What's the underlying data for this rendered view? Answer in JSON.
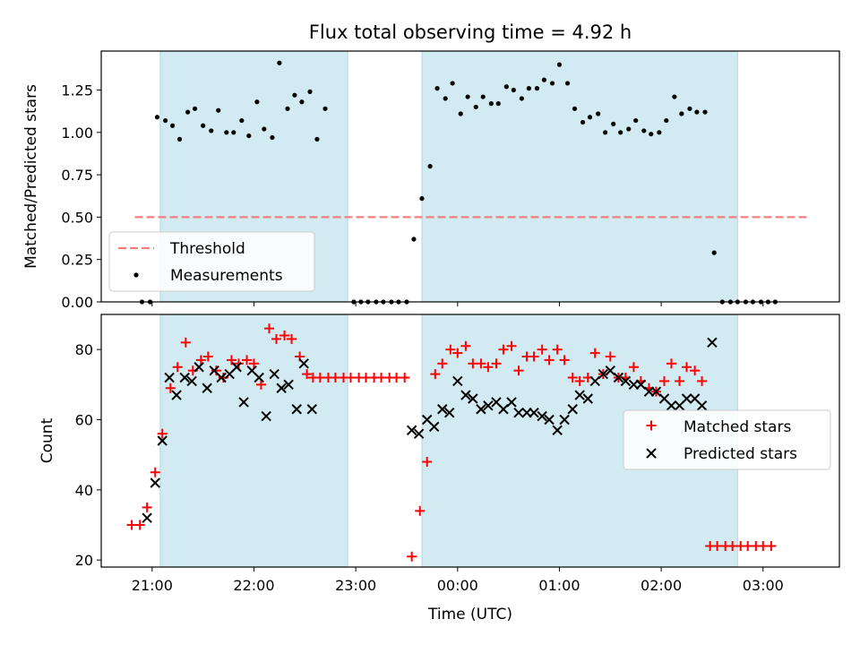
{
  "chart_data": {
    "title": "Flux total observing time = 4.92 h",
    "xlabel": "Time (UTC)",
    "x_unit": "hours relative to 00:00 UTC",
    "xlim": [
      -3.5,
      3.75
    ],
    "xticks": [
      {
        "value": -3,
        "label": "21:00"
      },
      {
        "value": -2,
        "label": "22:00"
      },
      {
        "value": -1,
        "label": "23:00"
      },
      {
        "value": 0,
        "label": "00:00"
      },
      {
        "value": 1,
        "label": "01:00"
      },
      {
        "value": 2,
        "label": "02:00"
      },
      {
        "value": 3,
        "label": "03:00"
      }
    ],
    "shaded_spans": [
      [
        -2.92,
        -1.08
      ],
      [
        -0.35,
        2.75
      ]
    ],
    "shaded_color": "#add8e6",
    "top": {
      "type": "scatter",
      "ylabel": "Matched/Predicted stars",
      "ylim": [
        0,
        1.48
      ],
      "yticks": [
        {
          "value": 0,
          "label": "0.00"
        },
        {
          "value": 0.25,
          "label": "0.25"
        },
        {
          "value": 0.5,
          "label": "0.50"
        },
        {
          "value": 0.75,
          "label": "0.75"
        },
        {
          "value": 1.0,
          "label": "1.00"
        },
        {
          "value": 1.25,
          "label": "1.25"
        }
      ],
      "threshold": {
        "name": "Threshold",
        "value": 0.5,
        "x_range": [
          -3.17,
          3.45
        ],
        "color": "#f08080"
      },
      "legend": {
        "position": "lower-left",
        "entries": [
          "Threshold",
          "Measurements"
        ]
      },
      "series": [
        {
          "name": "Measurements",
          "color": "#000000",
          "points": [
            [
              -3.1,
              0
            ],
            [
              -3.02,
              0
            ],
            [
              -2.95,
              1.09
            ],
            [
              -2.87,
              1.07
            ],
            [
              -2.8,
              1.04
            ],
            [
              -2.73,
              0.96
            ],
            [
              -2.65,
              1.12
            ],
            [
              -2.58,
              1.14
            ],
            [
              -2.5,
              1.04
            ],
            [
              -2.42,
              1.01
            ],
            [
              -2.35,
              1.13
            ],
            [
              -2.27,
              1.0
            ],
            [
              -2.2,
              1.0
            ],
            [
              -2.12,
              1.07
            ],
            [
              -2.05,
              0.98
            ],
            [
              -1.97,
              1.18
            ],
            [
              -1.9,
              1.02
            ],
            [
              -1.82,
              0.97
            ],
            [
              -1.75,
              1.41
            ],
            [
              -1.67,
              1.14
            ],
            [
              -1.6,
              1.22
            ],
            [
              -1.53,
              1.18
            ],
            [
              -1.45,
              1.24
            ],
            [
              -1.38,
              0.96
            ],
            [
              -1.3,
              1.14
            ],
            [
              -1.02,
              0
            ],
            [
              -0.95,
              0
            ],
            [
              -0.88,
              0
            ],
            [
              -0.8,
              0
            ],
            [
              -0.73,
              0
            ],
            [
              -0.65,
              0
            ],
            [
              -0.58,
              0
            ],
            [
              -0.5,
              0
            ],
            [
              -0.43,
              0.37
            ],
            [
              -0.35,
              0.61
            ],
            [
              -0.27,
              0.8
            ],
            [
              -0.2,
              1.26
            ],
            [
              -0.12,
              1.2
            ],
            [
              -0.05,
              1.29
            ],
            [
              0.03,
              1.11
            ],
            [
              0.1,
              1.21
            ],
            [
              0.18,
              1.15
            ],
            [
              0.25,
              1.21
            ],
            [
              0.33,
              1.17
            ],
            [
              0.4,
              1.17
            ],
            [
              0.48,
              1.27
            ],
            [
              0.55,
              1.25
            ],
            [
              0.63,
              1.2
            ],
            [
              0.7,
              1.26
            ],
            [
              0.78,
              1.26
            ],
            [
              0.85,
              1.31
            ],
            [
              0.93,
              1.29
            ],
            [
              1.0,
              1.4
            ],
            [
              1.08,
              1.29
            ],
            [
              1.15,
              1.14
            ],
            [
              1.23,
              1.06
            ],
            [
              1.3,
              1.09
            ],
            [
              1.38,
              1.11
            ],
            [
              1.45,
              1.0
            ],
            [
              1.53,
              1.05
            ],
            [
              1.6,
              1.0
            ],
            [
              1.68,
              1.02
            ],
            [
              1.75,
              1.07
            ],
            [
              1.83,
              1.01
            ],
            [
              1.9,
              0.99
            ],
            [
              1.98,
              1.0
            ],
            [
              2.05,
              1.07
            ],
            [
              2.13,
              1.21
            ],
            [
              2.2,
              1.11
            ],
            [
              2.28,
              1.14
            ],
            [
              2.35,
              1.12
            ],
            [
              2.43,
              1.12
            ],
            [
              2.52,
              0.29
            ],
            [
              2.6,
              0
            ],
            [
              2.68,
              0
            ],
            [
              2.75,
              0
            ],
            [
              2.83,
              0
            ],
            [
              2.9,
              0
            ],
            [
              2.98,
              0
            ],
            [
              3.05,
              0
            ],
            [
              3.12,
              0
            ]
          ]
        }
      ]
    },
    "bottom": {
      "type": "scatter",
      "ylabel": "Count",
      "ylim": [
        18,
        90
      ],
      "yticks": [
        {
          "value": 20,
          "label": "20"
        },
        {
          "value": 40,
          "label": "40"
        },
        {
          "value": 60,
          "label": "60"
        },
        {
          "value": 80,
          "label": "80"
        }
      ],
      "legend": {
        "position": "center-right",
        "entries": [
          "Matched stars",
          "Predicted stars"
        ]
      },
      "series": [
        {
          "name": "Matched stars",
          "marker": "+",
          "color": "#ff0000",
          "points": [
            [
              -3.2,
              30
            ],
            [
              -3.12,
              30
            ],
            [
              -3.05,
              35
            ],
            [
              -2.97,
              45
            ],
            [
              -2.9,
              56
            ],
            [
              -2.82,
              69
            ],
            [
              -2.75,
              75
            ],
            [
              -2.67,
              82
            ],
            [
              -2.6,
              74
            ],
            [
              -2.52,
              77
            ],
            [
              -2.45,
              78
            ],
            [
              -2.37,
              74
            ],
            [
              -2.3,
              72
            ],
            [
              -2.22,
              77
            ],
            [
              -2.15,
              76
            ],
            [
              -2.07,
              77
            ],
            [
              -2.0,
              76
            ],
            [
              -1.93,
              70
            ],
            [
              -1.85,
              86
            ],
            [
              -1.78,
              83
            ],
            [
              -1.7,
              84
            ],
            [
              -1.63,
              83
            ],
            [
              -1.55,
              78
            ],
            [
              -1.48,
              73
            ],
            [
              -1.42,
              72
            ],
            [
              -1.35,
              72
            ],
            [
              -1.27,
              72
            ],
            [
              -1.2,
              72
            ],
            [
              -1.12,
              72
            ],
            [
              -1.05,
              72
            ],
            [
              -0.97,
              72
            ],
            [
              -0.9,
              72
            ],
            [
              -0.82,
              72
            ],
            [
              -0.75,
              72
            ],
            [
              -0.67,
              72
            ],
            [
              -0.6,
              72
            ],
            [
              -0.52,
              72
            ],
            [
              -0.45,
              21
            ],
            [
              -0.37,
              34
            ],
            [
              -0.3,
              48
            ],
            [
              -0.22,
              73
            ],
            [
              -0.15,
              76
            ],
            [
              -0.07,
              80
            ],
            [
              0.0,
              79
            ],
            [
              0.08,
              81
            ],
            [
              0.15,
              76
            ],
            [
              0.23,
              76
            ],
            [
              0.3,
              75
            ],
            [
              0.38,
              76
            ],
            [
              0.45,
              80
            ],
            [
              0.53,
              81
            ],
            [
              0.6,
              74
            ],
            [
              0.68,
              78
            ],
            [
              0.75,
              78
            ],
            [
              0.83,
              80
            ],
            [
              0.9,
              77
            ],
            [
              0.98,
              80
            ],
            [
              1.05,
              77
            ],
            [
              1.13,
              72
            ],
            [
              1.2,
              71
            ],
            [
              1.28,
              72
            ],
            [
              1.35,
              79
            ],
            [
              1.43,
              73
            ],
            [
              1.5,
              78
            ],
            [
              1.58,
              72
            ],
            [
              1.65,
              72
            ],
            [
              1.73,
              75
            ],
            [
              1.8,
              71
            ],
            [
              1.88,
              69
            ],
            [
              1.95,
              68
            ],
            [
              2.03,
              71
            ],
            [
              2.1,
              76
            ],
            [
              2.18,
              71
            ],
            [
              2.25,
              75
            ],
            [
              2.33,
              74
            ],
            [
              2.4,
              71
            ],
            [
              2.48,
              24
            ],
            [
              2.55,
              24
            ],
            [
              2.63,
              24
            ],
            [
              2.7,
              24
            ],
            [
              2.78,
              24
            ],
            [
              2.85,
              24
            ],
            [
              2.93,
              24
            ],
            [
              3.0,
              24
            ],
            [
              3.08,
              24
            ]
          ]
        },
        {
          "name": "Predicted stars",
          "marker": "x",
          "color": "#000000",
          "points": [
            [
              -3.05,
              32
            ],
            [
              -2.97,
              42
            ],
            [
              -2.9,
              54
            ],
            [
              -2.83,
              72
            ],
            [
              -2.76,
              67
            ],
            [
              -2.68,
              72
            ],
            [
              -2.61,
              71
            ],
            [
              -2.54,
              75
            ],
            [
              -2.46,
              69
            ],
            [
              -2.39,
              74
            ],
            [
              -2.32,
              72
            ],
            [
              -2.24,
              73
            ],
            [
              -2.17,
              75
            ],
            [
              -2.1,
              65
            ],
            [
              -2.02,
              74
            ],
            [
              -1.95,
              72
            ],
            [
              -1.88,
              61
            ],
            [
              -1.8,
              73
            ],
            [
              -1.73,
              69
            ],
            [
              -1.66,
              70
            ],
            [
              -1.58,
              63
            ],
            [
              -1.51,
              76
            ],
            [
              -1.43,
              63
            ],
            [
              -0.45,
              57
            ],
            [
              -0.38,
              56
            ],
            [
              -0.3,
              60
            ],
            [
              -0.23,
              58
            ],
            [
              -0.15,
              63
            ],
            [
              -0.08,
              62
            ],
            [
              0.0,
              71
            ],
            [
              0.08,
              67
            ],
            [
              0.15,
              66
            ],
            [
              0.23,
              63
            ],
            [
              0.3,
              64
            ],
            [
              0.38,
              65
            ],
            [
              0.45,
              63
            ],
            [
              0.53,
              65
            ],
            [
              0.6,
              62
            ],
            [
              0.68,
              62
            ],
            [
              0.75,
              62
            ],
            [
              0.83,
              61
            ],
            [
              0.9,
              60
            ],
            [
              0.98,
              57
            ],
            [
              1.05,
              60
            ],
            [
              1.13,
              63
            ],
            [
              1.2,
              67
            ],
            [
              1.28,
              66
            ],
            [
              1.35,
              71
            ],
            [
              1.43,
              73
            ],
            [
              1.5,
              74
            ],
            [
              1.58,
              72
            ],
            [
              1.65,
              71
            ],
            [
              1.73,
              70
            ],
            [
              1.8,
              70
            ],
            [
              1.88,
              68
            ],
            [
              1.95,
              68
            ],
            [
              2.03,
              66
            ],
            [
              2.1,
              64
            ],
            [
              2.18,
              64
            ],
            [
              2.25,
              66
            ],
            [
              2.33,
              66
            ],
            [
              2.4,
              64
            ],
            [
              2.5,
              82
            ]
          ]
        }
      ]
    }
  }
}
